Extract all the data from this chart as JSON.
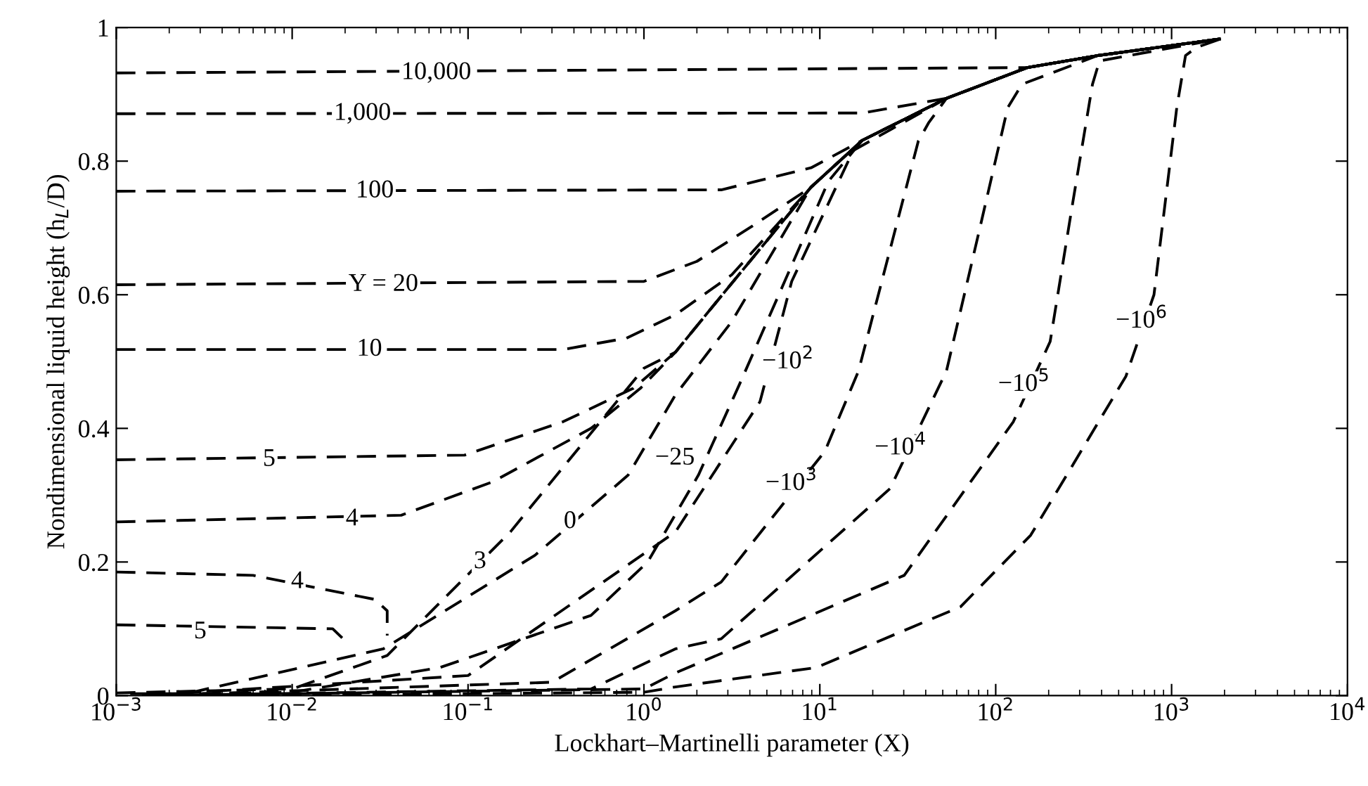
{
  "chart_data": {
    "type": "line",
    "xlabel": "Lockhart–Martinelli parameter (X)",
    "ylabel": "Nondimensional liquid height (h$_{L}$/D)",
    "log": "x",
    "xlim": [
      0.001,
      10000
    ],
    "ylim": [
      0,
      1
    ],
    "xticks": [
      {
        "value": 0.001,
        "label": "10$^{−3}$"
      },
      {
        "value": 0.01,
        "label": "10$^{−2}$"
      },
      {
        "value": 0.1,
        "label": "10$^{−1}$"
      },
      {
        "value": 1,
        "label": "10$^{0}$"
      },
      {
        "value": 10,
        "label": "10$^{1}$"
      },
      {
        "value": 100,
        "label": "10$^{2}$"
      },
      {
        "value": 1000,
        "label": "10$^{3}$"
      },
      {
        "value": 10000,
        "label": "10$^{4}$"
      }
    ],
    "yticks": [
      0,
      0.2,
      0.4,
      0.6,
      0.8,
      1
    ],
    "grid": false,
    "marker": "none",
    "line_style": "dashed",
    "series": [
      {
        "color": "#000000",
        "x": [
          0.001,
          151,
          380,
          1900
        ],
        "values": [
          0.932,
          0.94,
          0.958,
          0.983
        ]
      },
      {
        "color": "#000000",
        "x": [
          0.001,
          17.4,
          52.5,
          151,
          380,
          1900
        ],
        "values": [
          0.871,
          0.872,
          0.894,
          0.94,
          0.958,
          0.983
        ]
      },
      {
        "color": "#000000",
        "x": [
          0.001,
          2.75,
          8.91,
          17.4,
          52.5,
          151,
          380,
          1900
        ],
        "values": [
          0.755,
          0.757,
          0.79,
          0.831,
          0.894,
          0.94,
          0.958,
          0.983
        ]
      },
      {
        "color": "#000000",
        "x": [
          0.001,
          1,
          2,
          3.98,
          8.91,
          17.4,
          52.5,
          151,
          380,
          1900
        ],
        "values": [
          0.615,
          0.62,
          0.65,
          0.7,
          0.761,
          0.831,
          0.894,
          0.94,
          0.958,
          0.983
        ]
      },
      {
        "color": "#000000",
        "x": [
          0.001,
          0.347,
          0.794,
          1.51,
          3.16,
          8.91,
          17.4,
          52.5,
          151,
          380,
          1900
        ],
        "values": [
          0.518,
          0.518,
          0.535,
          0.57,
          0.63,
          0.761,
          0.831,
          0.894,
          0.94,
          0.958,
          0.983
        ]
      },
      {
        "color": "#000000",
        "x": [
          0.001,
          0.0955,
          0.347,
          0.871,
          1.51,
          2.75,
          8.91,
          17.4,
          52.5,
          151,
          380,
          1900
        ],
        "values": [
          0.353,
          0.36,
          0.41,
          0.46,
          0.514,
          0.598,
          0.761,
          0.831,
          0.894,
          0.94,
          0.958,
          0.983
        ]
      },
      {
        "color": "#000000",
        "x": [
          0.001,
          0.0417,
          0.138,
          0.5,
          0.955,
          1.51,
          2.75,
          8.91,
          17.4,
          52.5,
          151,
          380,
          1900
        ],
        "values": [
          0.26,
          0.27,
          0.32,
          0.4,
          0.46,
          0.514,
          0.598,
          0.761,
          0.831,
          0.894,
          0.94,
          0.958,
          0.983
        ]
      },
      {
        "color": "#000000",
        "x": [
          0.001,
          0.006,
          0.0295,
          0.0347,
          0.0347
        ],
        "values": [
          0.185,
          0.18,
          0.144,
          0.127,
          0.09
        ]
      },
      {
        "color": "#000000",
        "x": [
          0.001,
          0.017,
          0.0204
        ],
        "values": [
          0.106,
          0.1,
          0.08
        ]
      },
      {
        "color": "#000000",
        "x": [
          0.001,
          0.01,
          0.0347,
          0.174,
          1,
          1.51,
          2.75,
          8.91,
          17.4,
          52.5,
          151,
          380,
          1900
        ],
        "values": [
          0.004,
          0.01,
          0.06,
          0.245,
          0.49,
          0.514,
          0.598,
          0.761,
          0.831,
          0.894,
          0.94,
          0.958,
          0.983
        ]
      },
      {
        "color": "#000000",
        "x": [
          0.0012,
          0.0025,
          0.033,
          0.24,
          0.813,
          1.51,
          3.16,
          8.91,
          17.4,
          52.5,
          151,
          380,
          1900
        ],
        "values": [
          0.003,
          0.003,
          0.07,
          0.21,
          0.33,
          0.45,
          0.56,
          0.761,
          0.831,
          0.894,
          0.94,
          0.958,
          0.983
        ]
      },
      {
        "color": "#000000",
        "x": [
          0.0014,
          0.01,
          0.0692,
          0.5,
          1.05,
          2.04,
          3.55,
          6.31,
          11.2,
          17.4,
          52.5,
          151,
          380,
          1900
        ],
        "values": [
          0.002,
          0.005,
          0.042,
          0.12,
          0.2,
          0.33,
          0.47,
          0.62,
          0.77,
          0.831,
          0.894,
          0.94,
          0.958,
          0.983
        ]
      },
      {
        "color": "#000000",
        "x": [
          0.0016,
          0.1,
          1.51,
          4.57,
          6.92,
          15.5,
          52.5,
          151,
          380,
          1900
        ],
        "values": [
          0.001,
          0.03,
          0.245,
          0.44,
          0.62,
          0.816,
          0.894,
          0.94,
          0.958,
          0.983
        ]
      },
      {
        "color": "#000000",
        "x": [
          0.002,
          0.3,
          1.51,
          2.75,
          10.7,
          16.6,
          27,
          36.3,
          41.7,
          52.5,
          151,
          380,
          1900
        ],
        "values": [
          0.001,
          0.02,
          0.127,
          0.17,
          0.366,
          0.486,
          0.7,
          0.83,
          0.858,
          0.894,
          0.94,
          0.958,
          0.983
        ]
      },
      {
        "color": "#000000",
        "x": [
          0.0025,
          0.5,
          1.51,
          2.75,
          25.1,
          52.5,
          81.3,
          117,
          141,
          380,
          1900
        ],
        "values": [
          0.001,
          0.01,
          0.07,
          0.085,
          0.31,
          0.486,
          0.7,
          0.88,
          0.915,
          0.958,
          0.983
        ]
      },
      {
        "color": "#000000",
        "x": [
          0.003,
          1,
          1.51,
          2.75,
          30.2,
          126,
          204,
          275,
          355,
          389,
          1900
        ],
        "values": [
          0.001,
          0.01,
          0.034,
          0.063,
          0.18,
          0.41,
          0.53,
          0.74,
          0.915,
          0.95,
          0.983
        ]
      },
      {
        "color": "#000000",
        "x": [
          0.004,
          1,
          1.51,
          9.55,
          63.1,
          158,
          550,
          794,
          1070,
          1200,
          1380,
          1900
        ],
        "values": [
          0,
          0.005,
          0.013,
          0.042,
          0.133,
          0.24,
          0.478,
          0.6,
          0.88,
          0.958,
          0.97,
          0.983
        ]
      }
    ],
    "annotations": [
      {
        "text": "10,000",
        "x": 0.066,
        "y": 0.932
      },
      {
        "text": "1,000",
        "x": 0.0251,
        "y": 0.871
      },
      {
        "text": "100",
        "x": 0.0295,
        "y": 0.755
      },
      {
        "text": "Y = 20",
        "x": 0.033,
        "y": 0.615
      },
      {
        "text": "10",
        "x": 0.0275,
        "y": 0.518
      },
      {
        "text": "5",
        "x": 0.0074,
        "y": 0.353
      },
      {
        "text": "4",
        "x": 0.0219,
        "y": 0.264
      },
      {
        "text": "4",
        "x": 0.0107,
        "y": 0.17
      },
      {
        "text": "5",
        "x": 0.003,
        "y": 0.095
      },
      {
        "text": "3",
        "x": 0.117,
        "y": 0.2
      },
      {
        "text": "0",
        "x": 0.38,
        "y": 0.26
      },
      {
        "text": "−25",
        "x": 1.5,
        "y": 0.355
      },
      {
        "text": "−10$^{2}$",
        "x": 6.6,
        "y": 0.499
      },
      {
        "text": "−10$^{3}$",
        "x": 6.9,
        "y": 0.317
      },
      {
        "text": "−10$^{4}$",
        "x": 28.8,
        "y": 0.37
      },
      {
        "text": "−10$^{5}$",
        "x": 145,
        "y": 0.465
      },
      {
        "text": "−10$^{6}$",
        "x": 676,
        "y": 0.56
      }
    ]
  }
}
